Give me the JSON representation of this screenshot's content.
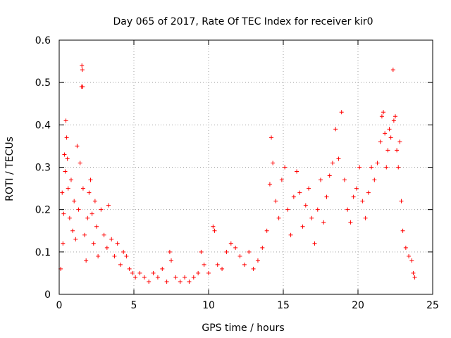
{
  "chart_data": {
    "type": "scatter",
    "title": "Day 065 of 2017, Rate Of TEC Index for receiver kir0",
    "xlabel": "GPS time / hours",
    "ylabel": "ROTI / TECUs",
    "xlim": [
      0,
      25
    ],
    "ylim": [
      0,
      0.6
    ],
    "grid": true,
    "marker": "+",
    "x_ticks": [
      0,
      5,
      10,
      15,
      20,
      25
    ],
    "y_ticks": [
      0,
      0.1,
      0.2,
      0.3,
      0.4,
      0.5,
      0.6
    ],
    "x_tick_labels": [
      "0",
      "5",
      "10",
      "15",
      "20",
      "25"
    ],
    "y_tick_labels": [
      "0",
      "0.1",
      "0.2",
      "0.3",
      "0.4",
      "0.5",
      "0.6"
    ],
    "series": [
      {
        "name": "ROTI",
        "color": "#ff0000",
        "points": [
          [
            0.1,
            0.06
          ],
          [
            0.2,
            0.24
          ],
          [
            0.25,
            0.12
          ],
          [
            0.3,
            0.19
          ],
          [
            0.35,
            0.33
          ],
          [
            0.4,
            0.29
          ],
          [
            0.45,
            0.41
          ],
          [
            0.5,
            0.37
          ],
          [
            0.55,
            0.32
          ],
          [
            0.6,
            0.25
          ],
          [
            0.7,
            0.18
          ],
          [
            0.8,
            0.27
          ],
          [
            0.9,
            0.15
          ],
          [
            1.0,
            0.22
          ],
          [
            1.1,
            0.13
          ],
          [
            1.2,
            0.35
          ],
          [
            1.3,
            0.2
          ],
          [
            1.4,
            0.31
          ],
          [
            1.5,
            0.49
          ],
          [
            1.52,
            0.54
          ],
          [
            1.55,
            0.53
          ],
          [
            1.58,
            0.49
          ],
          [
            1.6,
            0.25
          ],
          [
            1.7,
            0.14
          ],
          [
            1.8,
            0.08
          ],
          [
            1.9,
            0.18
          ],
          [
            2.0,
            0.24
          ],
          [
            2.1,
            0.27
          ],
          [
            2.2,
            0.19
          ],
          [
            2.3,
            0.12
          ],
          [
            2.4,
            0.22
          ],
          [
            2.5,
            0.16
          ],
          [
            2.6,
            0.09
          ],
          [
            2.8,
            0.2
          ],
          [
            3.0,
            0.14
          ],
          [
            3.2,
            0.11
          ],
          [
            3.3,
            0.21
          ],
          [
            3.5,
            0.13
          ],
          [
            3.7,
            0.09
          ],
          [
            3.9,
            0.12
          ],
          [
            4.1,
            0.07
          ],
          [
            4.3,
            0.1
          ],
          [
            4.5,
            0.09
          ],
          [
            4.7,
            0.06
          ],
          [
            4.9,
            0.05
          ],
          [
            5.1,
            0.04
          ],
          [
            5.4,
            0.05
          ],
          [
            5.7,
            0.04
          ],
          [
            6.0,
            0.03
          ],
          [
            6.3,
            0.05
          ],
          [
            6.6,
            0.04
          ],
          [
            6.9,
            0.06
          ],
          [
            7.2,
            0.03
          ],
          [
            7.4,
            0.1
          ],
          [
            7.5,
            0.08
          ],
          [
            7.8,
            0.04
          ],
          [
            8.1,
            0.03
          ],
          [
            8.4,
            0.04
          ],
          [
            8.7,
            0.03
          ],
          [
            9.0,
            0.04
          ],
          [
            9.3,
            0.05
          ],
          [
            9.5,
            0.1
          ],
          [
            9.7,
            0.07
          ],
          [
            10.0,
            0.05
          ],
          [
            10.3,
            0.16
          ],
          [
            10.4,
            0.15
          ],
          [
            10.6,
            0.07
          ],
          [
            10.9,
            0.06
          ],
          [
            11.2,
            0.1
          ],
          [
            11.5,
            0.12
          ],
          [
            11.8,
            0.11
          ],
          [
            12.1,
            0.09
          ],
          [
            12.4,
            0.07
          ],
          [
            12.7,
            0.1
          ],
          [
            13.0,
            0.06
          ],
          [
            13.3,
            0.08
          ],
          [
            13.6,
            0.11
          ],
          [
            13.9,
            0.15
          ],
          [
            14.1,
            0.26
          ],
          [
            14.2,
            0.37
          ],
          [
            14.3,
            0.31
          ],
          [
            14.5,
            0.22
          ],
          [
            14.7,
            0.18
          ],
          [
            14.9,
            0.27
          ],
          [
            15.1,
            0.3
          ],
          [
            15.3,
            0.2
          ],
          [
            15.5,
            0.14
          ],
          [
            15.7,
            0.23
          ],
          [
            15.9,
            0.29
          ],
          [
            16.1,
            0.24
          ],
          [
            16.3,
            0.16
          ],
          [
            16.5,
            0.21
          ],
          [
            16.7,
            0.25
          ],
          [
            16.9,
            0.18
          ],
          [
            17.1,
            0.12
          ],
          [
            17.3,
            0.2
          ],
          [
            17.5,
            0.27
          ],
          [
            17.7,
            0.17
          ],
          [
            17.9,
            0.23
          ],
          [
            18.1,
            0.28
          ],
          [
            18.3,
            0.31
          ],
          [
            18.5,
            0.39
          ],
          [
            18.7,
            0.32
          ],
          [
            18.9,
            0.43
          ],
          [
            19.1,
            0.27
          ],
          [
            19.3,
            0.2
          ],
          [
            19.5,
            0.17
          ],
          [
            19.7,
            0.23
          ],
          [
            19.9,
            0.25
          ],
          [
            20.1,
            0.3
          ],
          [
            20.3,
            0.22
          ],
          [
            20.5,
            0.18
          ],
          [
            20.7,
            0.24
          ],
          [
            20.9,
            0.3
          ],
          [
            21.1,
            0.27
          ],
          [
            21.3,
            0.31
          ],
          [
            21.5,
            0.36
          ],
          [
            21.6,
            0.42
          ],
          [
            21.7,
            0.43
          ],
          [
            21.8,
            0.38
          ],
          [
            21.9,
            0.3
          ],
          [
            22.0,
            0.34
          ],
          [
            22.1,
            0.39
          ],
          [
            22.2,
            0.37
          ],
          [
            22.35,
            0.53
          ],
          [
            22.4,
            0.41
          ],
          [
            22.5,
            0.42
          ],
          [
            22.6,
            0.34
          ],
          [
            22.7,
            0.3
          ],
          [
            22.8,
            0.36
          ],
          [
            22.9,
            0.22
          ],
          [
            23.0,
            0.15
          ],
          [
            23.2,
            0.11
          ],
          [
            23.4,
            0.09
          ],
          [
            23.6,
            0.08
          ],
          [
            23.7,
            0.05
          ],
          [
            23.8,
            0.04
          ]
        ]
      }
    ]
  }
}
